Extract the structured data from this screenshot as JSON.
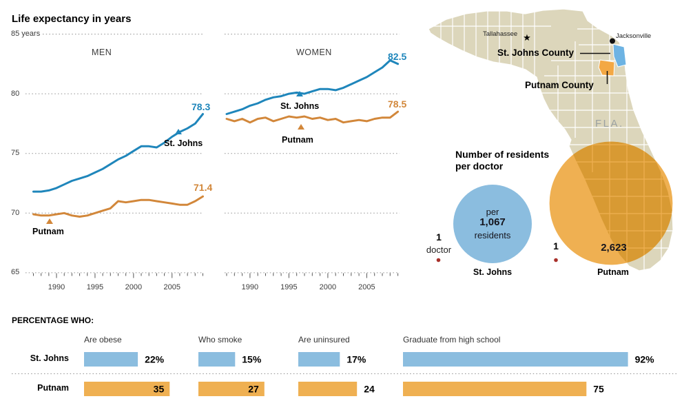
{
  "title": "Life expectancy in years",
  "colors": {
    "blue_line": "#1f86bb",
    "orange_line": "#d2873a",
    "blue_fill": "#8bbddf",
    "orange_fill": "#efb052",
    "map_fill": "#dcd6bb",
    "map_dark_fill": "#d89a33",
    "county_blue": "#6db3e3",
    "county_orange": "#f3a844",
    "red_dot": "#a8302a",
    "grid_dot": "#909090"
  },
  "chart_data": [
    {
      "type": "line",
      "group": "MEN",
      "years": [
        1987,
        1988,
        1989,
        1990,
        1991,
        1992,
        1993,
        1994,
        1995,
        1996,
        1997,
        1998,
        1999,
        2000,
        2001,
        2002,
        2003,
        2004,
        2005,
        2006,
        2007,
        2008,
        2009
      ],
      "tick_labels": [
        "1990",
        "1995",
        "2000",
        "2005"
      ],
      "y_axis_labels": [
        "85 years",
        "80",
        "75",
        "70",
        "65"
      ],
      "y_range": [
        65,
        85
      ],
      "series": [
        {
          "name": "St. Johns",
          "end_label": "78.3",
          "values": [
            71.8,
            71.8,
            71.9,
            72.1,
            72.4,
            72.7,
            72.9,
            73.1,
            73.4,
            73.7,
            74.1,
            74.5,
            74.8,
            75.2,
            75.6,
            75.6,
            75.5,
            75.9,
            76.4,
            76.8,
            77.1,
            77.5,
            78.3
          ]
        },
        {
          "name": "Putnam",
          "end_label": "71.4",
          "values": [
            69.9,
            69.8,
            69.8,
            69.9,
            70.0,
            69.8,
            69.7,
            69.8,
            70.0,
            70.2,
            70.4,
            71.0,
            70.9,
            71.0,
            71.1,
            71.1,
            71.0,
            70.9,
            70.8,
            70.7,
            70.7,
            71.0,
            71.4
          ]
        }
      ]
    },
    {
      "type": "line",
      "group": "WOMEN",
      "years": [
        1987,
        1988,
        1989,
        1990,
        1991,
        1992,
        1993,
        1994,
        1995,
        1996,
        1997,
        1998,
        1999,
        2000,
        2001,
        2002,
        2003,
        2004,
        2005,
        2006,
        2007,
        2008,
        2009
      ],
      "tick_labels": [
        "1990",
        "1995",
        "2000",
        "2005"
      ],
      "y_range": [
        65,
        85
      ],
      "series": [
        {
          "name": "St. Johns",
          "end_label": "82.5",
          "values": [
            78.3,
            78.5,
            78.7,
            79.0,
            79.2,
            79.5,
            79.7,
            79.8,
            80.0,
            80.1,
            80.0,
            80.2,
            80.4,
            80.4,
            80.3,
            80.5,
            80.8,
            81.1,
            81.4,
            81.8,
            82.2,
            82.8,
            82.5
          ]
        },
        {
          "name": "Putnam",
          "end_label": "78.5",
          "values": [
            77.9,
            77.7,
            77.9,
            77.6,
            77.9,
            78.0,
            77.7,
            77.9,
            78.1,
            78.0,
            78.1,
            77.9,
            78.0,
            77.8,
            77.9,
            77.6,
            77.7,
            77.8,
            77.7,
            77.9,
            78.0,
            78.0,
            78.5
          ]
        }
      ]
    },
    {
      "type": "bubble",
      "title_lines": [
        "Number of residents",
        "per doctor"
      ],
      "unit": {
        "count": "1",
        "word": "doctor"
      },
      "items": [
        {
          "name": "St. Johns",
          "value": 1067,
          "center_lines": [
            "per",
            "1,067",
            "residents"
          ]
        },
        {
          "name": "Putnam",
          "value": 2623,
          "value_label": "2,623",
          "unit_count": "1"
        }
      ]
    },
    {
      "type": "bar",
      "title": "PERCENTAGE WHO:",
      "row_labels": [
        "St. Johns",
        "Putnam"
      ],
      "metrics": [
        {
          "label": "Are obese",
          "st_johns": 22,
          "st_johns_label": "22%",
          "putnam": 35,
          "putnam_label": "35",
          "putnam_label_inside": true
        },
        {
          "label": "Who smoke",
          "st_johns": 15,
          "st_johns_label": "15%",
          "putnam": 27,
          "putnam_label": "27",
          "putnam_label_inside": true
        },
        {
          "label": "Are uninsured",
          "st_johns": 17,
          "st_johns_label": "17%",
          "putnam": 24,
          "putnam_label": "24",
          "putnam_label_inside": false
        },
        {
          "label": "Graduate from high school",
          "st_johns": 92,
          "st_johns_label": "92%",
          "putnam": 75,
          "putnam_label": "75",
          "putnam_label_inside": false
        }
      ]
    }
  ],
  "map": {
    "state_abbr": "FLA.",
    "cities": [
      {
        "name": "Tallahassee"
      },
      {
        "name": "Jacksonville"
      }
    ],
    "callouts": [
      {
        "label": "St. Johns County"
      },
      {
        "label": "Putnam County"
      }
    ]
  }
}
